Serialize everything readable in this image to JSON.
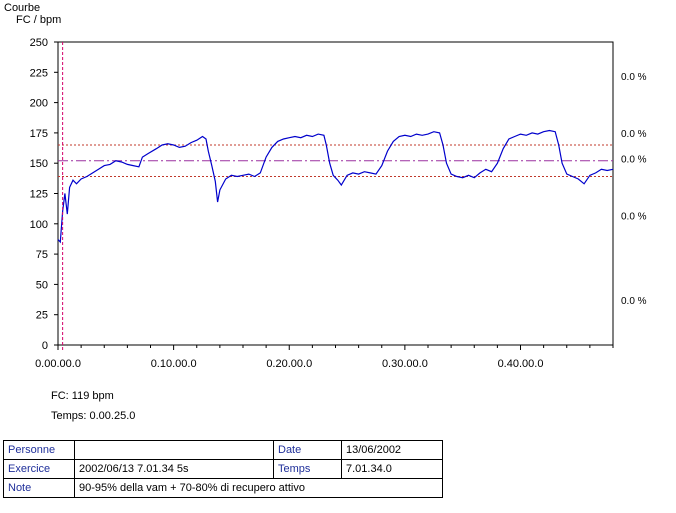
{
  "chart_data": {
    "type": "line",
    "title": "Courbe",
    "ylabel": "FC / bpm",
    "ylim": [
      0,
      250
    ],
    "yticks": [
      0,
      25,
      50,
      75,
      100,
      125,
      150,
      175,
      200,
      225,
      250
    ],
    "xlim_min": [
      0,
      48
    ],
    "xticks": [
      {
        "value": 0,
        "label": "0.00.00.0"
      },
      {
        "value": 10,
        "label": "0.10.00.0"
      },
      {
        "value": 20,
        "label": "0.20.00.0"
      },
      {
        "value": 30,
        "label": "0.30.00.0"
      },
      {
        "value": 40,
        "label": "0.40.00.0"
      }
    ],
    "grid": false,
    "reference_lines": [
      {
        "value": 165,
        "style": "dotted",
        "color": "#c0392b"
      },
      {
        "value": 152,
        "style": "dash-dot",
        "color": "#9b30a0"
      },
      {
        "value": 139,
        "style": "dotted",
        "color": "#c0392b"
      }
    ],
    "cursor_x": 0.4,
    "zone_labels": [
      {
        "value": 222,
        "label": "0.0 %"
      },
      {
        "value": 175,
        "label": "0.0 %"
      },
      {
        "value": 154,
        "label": "0.0 %"
      },
      {
        "value": 107,
        "label": "0.0 %"
      },
      {
        "value": 37,
        "label": "0.0 %"
      }
    ],
    "series": [
      {
        "color": "#0000cc",
        "points": [
          [
            0,
            87
          ],
          [
            0.2,
            85
          ],
          [
            0.4,
            110
          ],
          [
            0.6,
            125
          ],
          [
            0.8,
            108
          ],
          [
            1,
            130
          ],
          [
            1.3,
            136
          ],
          [
            1.6,
            133
          ],
          [
            2,
            137
          ],
          [
            2.5,
            139
          ],
          [
            3,
            142
          ],
          [
            3.5,
            145
          ],
          [
            4,
            148
          ],
          [
            4.5,
            149
          ],
          [
            5,
            152
          ],
          [
            5.5,
            151
          ],
          [
            6,
            149
          ],
          [
            6.5,
            148
          ],
          [
            7,
            147
          ],
          [
            7.3,
            155
          ],
          [
            7.8,
            158
          ],
          [
            8.5,
            162
          ],
          [
            9,
            165
          ],
          [
            9.5,
            166
          ],
          [
            10,
            165
          ],
          [
            10.5,
            163
          ],
          [
            11,
            164
          ],
          [
            11.5,
            167
          ],
          [
            12,
            169
          ],
          [
            12.5,
            172
          ],
          [
            12.8,
            170
          ],
          [
            13,
            160
          ],
          [
            13.3,
            148
          ],
          [
            13.6,
            135
          ],
          [
            13.8,
            118
          ],
          [
            14,
            128
          ],
          [
            14.5,
            137
          ],
          [
            15,
            140
          ],
          [
            15.5,
            139
          ],
          [
            16,
            140
          ],
          [
            16.5,
            141
          ],
          [
            17,
            139
          ],
          [
            17.5,
            142
          ],
          [
            18,
            155
          ],
          [
            18.5,
            163
          ],
          [
            19,
            168
          ],
          [
            19.5,
            170
          ],
          [
            20,
            171
          ],
          [
            20.5,
            172
          ],
          [
            21,
            171
          ],
          [
            21.5,
            173
          ],
          [
            22,
            172
          ],
          [
            22.5,
            174
          ],
          [
            23,
            173
          ],
          [
            23.2,
            165
          ],
          [
            23.5,
            150
          ],
          [
            23.8,
            140
          ],
          [
            24.2,
            136
          ],
          [
            24.5,
            132
          ],
          [
            25,
            140
          ],
          [
            25.5,
            142
          ],
          [
            26,
            141
          ],
          [
            26.5,
            143
          ],
          [
            27,
            142
          ],
          [
            27.5,
            141
          ],
          [
            28,
            148
          ],
          [
            28.5,
            160
          ],
          [
            29,
            168
          ],
          [
            29.5,
            172
          ],
          [
            30,
            173
          ],
          [
            30.5,
            172
          ],
          [
            31,
            174
          ],
          [
            31.5,
            173
          ],
          [
            32,
            174
          ],
          [
            32.5,
            176
          ],
          [
            33,
            175
          ],
          [
            33.3,
            165
          ],
          [
            33.6,
            150
          ],
          [
            34,
            141
          ],
          [
            34.5,
            139
          ],
          [
            35,
            138
          ],
          [
            35.5,
            140
          ],
          [
            36,
            138
          ],
          [
            36.5,
            142
          ],
          [
            37,
            145
          ],
          [
            37.5,
            143
          ],
          [
            38,
            150
          ],
          [
            38.5,
            162
          ],
          [
            39,
            170
          ],
          [
            39.5,
            172
          ],
          [
            40,
            174
          ],
          [
            40.5,
            173
          ],
          [
            41,
            175
          ],
          [
            41.5,
            174
          ],
          [
            42,
            176
          ],
          [
            42.5,
            177
          ],
          [
            43,
            176
          ],
          [
            43.3,
            165
          ],
          [
            43.6,
            150
          ],
          [
            44,
            141
          ],
          [
            44.5,
            139
          ],
          [
            45,
            137
          ],
          [
            45.5,
            133
          ],
          [
            46,
            140
          ],
          [
            46.5,
            142
          ],
          [
            47,
            145
          ],
          [
            47.5,
            144
          ],
          [
            48,
            145
          ]
        ]
      }
    ]
  },
  "readout": {
    "fc": "FC: 119 bpm",
    "temps": "Temps: 0.00.25.0"
  },
  "info_table": {
    "personne_label": "Personne",
    "personne_value": "",
    "date_label": "Date",
    "date_value": "13/06/2002",
    "exercice_label": "Exercice",
    "exercice_value": "2002/06/13 7.01.34 5s",
    "temps_label": "Temps",
    "temps_value": "7.01.34.0",
    "note_label": "Note",
    "note_value": "90-95% della vam + 70-80% di recupero attivo"
  }
}
